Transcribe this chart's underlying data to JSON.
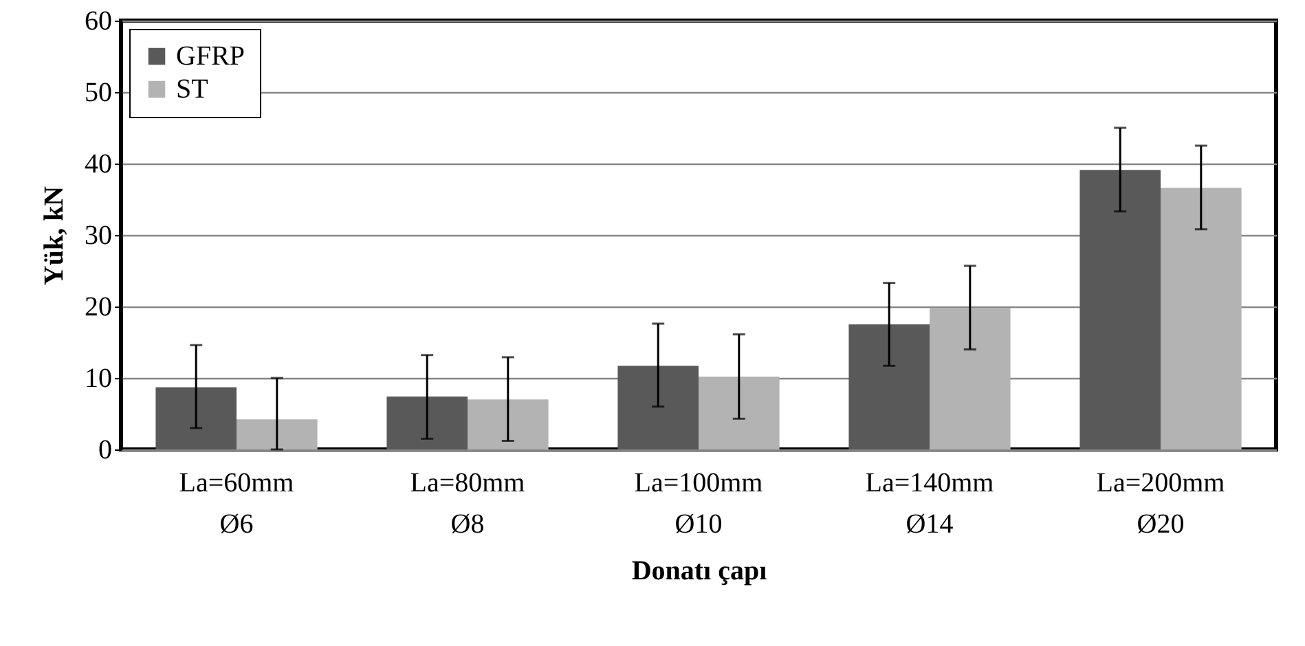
{
  "chart_data": {
    "type": "bar",
    "xlabel": "Donatı çapı",
    "ylabel": "Yük, kN",
    "categories": [
      "La=60mm\nØ6",
      "La=80mm\nØ8",
      "La=100mm\nØ10",
      "La=140mm\nØ14",
      "La=200mm\nØ20"
    ],
    "series": [
      {
        "name": "GFRP",
        "color": "#595959",
        "values": [
          8.7,
          7.4,
          11.7,
          17.5,
          39.1
        ],
        "errors": [
          [
            3,
            14.6
          ],
          [
            1.5,
            13.2
          ],
          [
            6,
            17.6
          ],
          [
            11.7,
            23.3
          ],
          [
            33.3,
            45
          ]
        ]
      },
      {
        "name": "ST",
        "color": "#b3b3b3",
        "values": [
          4.2,
          7,
          10.2,
          19.8,
          36.6
        ],
        "errors": [
          [
            0,
            10
          ],
          [
            1.2,
            12.9
          ],
          [
            4.3,
            16.1
          ],
          [
            14,
            25.7
          ],
          [
            30.8,
            42.5
          ]
        ]
      }
    ],
    "ylim": [
      0,
      60
    ],
    "yticks": [
      0,
      10,
      20,
      30,
      40,
      50,
      60
    ],
    "grid": "y",
    "legend": "top left"
  }
}
